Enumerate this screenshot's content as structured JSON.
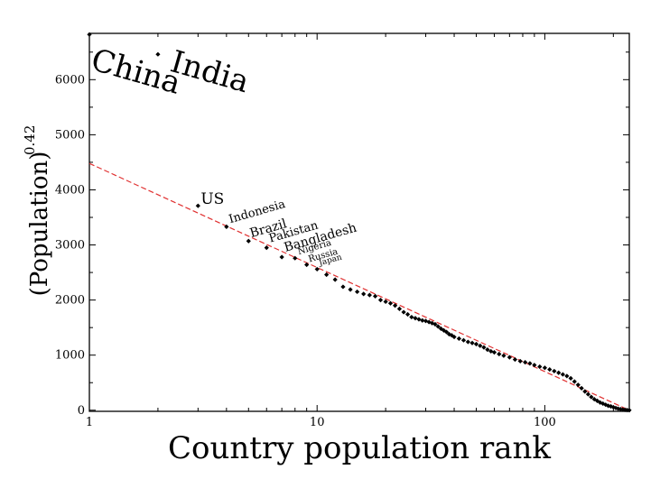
{
  "chart_data": {
    "type": "scatter",
    "title": "",
    "xlabel": "Country population rank",
    "ylabel": "(Population)",
    "ylabel_exponent": "0.42",
    "x_scale": "log",
    "y_scale": "linear",
    "xlim": [
      1,
      235
    ],
    "ylim": [
      -20,
      6840
    ],
    "x_ticks": [
      1,
      10,
      100
    ],
    "x_tick_labels": [
      "1",
      "10",
      "100"
    ],
    "y_ticks": [
      0,
      1000,
      2000,
      3000,
      4000,
      5000,
      6000
    ],
    "y_tick_labels": [
      "0",
      "1000",
      "2000",
      "3000",
      "4000",
      "5000",
      "6000"
    ],
    "grid": false,
    "legend": "none",
    "colors": {
      "points": "#000000",
      "fit_line": "#e03030",
      "axes": "#000000"
    },
    "series": [
      {
        "kind": "points",
        "x": [
          1,
          2,
          3,
          4,
          5,
          6,
          7,
          8,
          9,
          10,
          11,
          12,
          13,
          14,
          15,
          16,
          17,
          18,
          19,
          20,
          21,
          22,
          23,
          24,
          25,
          26,
          27,
          28,
          29,
          30,
          31,
          32,
          33,
          34,
          35,
          36,
          37,
          38,
          39,
          40,
          42,
          44,
          46,
          48,
          50,
          52,
          54,
          56,
          58,
          60,
          63,
          66,
          70,
          74,
          78,
          82,
          86,
          90,
          95,
          100,
          105,
          110,
          115,
          120,
          125,
          130,
          135,
          140,
          145,
          150,
          155,
          160,
          165,
          170,
          175,
          180,
          185,
          190,
          195,
          200,
          205,
          210,
          215,
          220,
          225,
          230,
          235
        ],
        "y": [
          6820,
          6460,
          3710,
          3330,
          3070,
          2950,
          2780,
          2760,
          2640,
          2560,
          2460,
          2370,
          2240,
          2190,
          2150,
          2110,
          2090,
          2070,
          2000,
          1970,
          1940,
          1900,
          1840,
          1780,
          1740,
          1690,
          1670,
          1650,
          1630,
          1620,
          1600,
          1580,
          1560,
          1520,
          1480,
          1450,
          1420,
          1380,
          1360,
          1330,
          1300,
          1270,
          1240,
          1220,
          1200,
          1170,
          1140,
          1100,
          1070,
          1050,
          1020,
          990,
          960,
          920,
          890,
          870,
          850,
          820,
          790,
          770,
          740,
          710,
          680,
          650,
          620,
          580,
          520,
          460,
          400,
          340,
          290,
          240,
          200,
          170,
          140,
          120,
          100,
          80,
          70,
          55,
          40,
          28,
          20,
          12,
          6,
          2,
          0
        ]
      },
      {
        "kind": "fit-line",
        "x": [
          1,
          235
        ],
        "y": [
          4480,
          0
        ]
      }
    ],
    "annotations": [
      {
        "text": "China",
        "x": 1,
        "y": 6820,
        "rotate": 16,
        "size": 34
      },
      {
        "text": "India",
        "x": 2,
        "y": 6460,
        "rotate": 16,
        "size": 34
      },
      {
        "text": "US",
        "x": 3,
        "y": 3710,
        "rotate": 0,
        "size": 17
      },
      {
        "text": "Indonesia",
        "x": 4,
        "y": 3330,
        "rotate": -16,
        "size": 13
      },
      {
        "text": "Brazil",
        "x": 5,
        "y": 3070,
        "rotate": -16,
        "size": 14
      },
      {
        "text": "Pakistan",
        "x": 6,
        "y": 2950,
        "rotate": -16,
        "size": 13
      },
      {
        "text": "Bangladesh",
        "x": 7,
        "y": 2780,
        "rotate": -16,
        "size": 14
      },
      {
        "text": "Nigeria",
        "x": 8,
        "y": 2760,
        "rotate": -16,
        "size": 10
      },
      {
        "text": "Russia",
        "x": 9,
        "y": 2640,
        "rotate": -16,
        "size": 10
      },
      {
        "text": "Japan",
        "x": 10,
        "y": 2560,
        "rotate": -16,
        "size": 9
      }
    ]
  }
}
